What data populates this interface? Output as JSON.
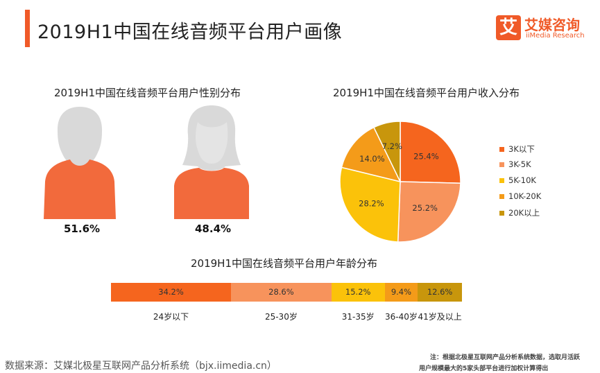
{
  "header": {
    "title": "2019H1中国在线音频平台用户画像",
    "logo_mark": "艾",
    "logo_name": "艾媒咨询",
    "logo_en": "iiMedia Research"
  },
  "colors": {
    "accent": "#f05a28",
    "male_body": "#f26a3c",
    "person_head": "#d9d9d9"
  },
  "chart_data": [
    {
      "type": "pictogram",
      "title": "2019H1中国在线音频平台用户性别分布",
      "categories": [
        "男",
        "女"
      ],
      "values": [
        51.6,
        48.4
      ],
      "labels": [
        "51.6%",
        "48.4%"
      ],
      "icons": [
        "male-person-icon",
        "female-person-icon"
      ]
    },
    {
      "type": "pie",
      "title": "2019H1中国在线音频平台用户收入分布",
      "categories": [
        "3K以下",
        "3K-5K",
        "5K-10K",
        "10K-20K",
        "20K以上"
      ],
      "values": [
        25.4,
        25.2,
        28.2,
        14.0,
        7.2
      ],
      "labels": [
        "25.4%",
        "25.2%",
        "28.2%",
        "14.0%",
        "7.2%"
      ],
      "colors": [
        "#f5651e",
        "#f7935c",
        "#fbc20a",
        "#f49b19",
        "#c8960c"
      ],
      "legend": "right"
    },
    {
      "type": "stacked-bar",
      "title": "2019H1中国在线音频平台用户年龄分布",
      "categories": [
        "24岁以下",
        "25-30岁",
        "31-35岁",
        "36-40岁",
        "41岁及以上"
      ],
      "values": [
        34.2,
        28.6,
        15.2,
        9.4,
        12.6
      ],
      "labels": [
        "34.2%",
        "28.6%",
        "15.2%",
        "9.4%",
        "12.6%"
      ],
      "colors": [
        "#f5651e",
        "#f7935c",
        "#fbc20a",
        "#f49b19",
        "#c8960c"
      ]
    }
  ],
  "footer": {
    "source": "数据来源：艾媒北极星互联网产品分析系统（bjx.iimedia.cn）",
    "note_line1": "注：根据北极星互联网产品分析系统数据，选取月活跃",
    "note_line2": "用户规模最大的5家头部平台进行加权计算得出"
  }
}
